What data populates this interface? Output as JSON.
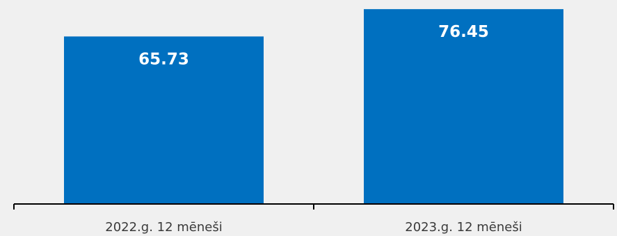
{
  "chart_data": {
    "type": "bar",
    "categories": [
      "2022.g. 12 mēneši",
      "2023.g. 12 mēneši"
    ],
    "values": [
      65.73,
      76.45
    ],
    "value_labels": [
      "65.73",
      "76.45"
    ],
    "title": "",
    "xlabel": "",
    "ylabel": "",
    "ylim": [
      0,
      78.4
    ],
    "grid": false,
    "legend": "none",
    "bar_color": "#0070c0",
    "label_color": "#ffffff",
    "axis_color": "#000000",
    "background": "#f0f0f0"
  }
}
